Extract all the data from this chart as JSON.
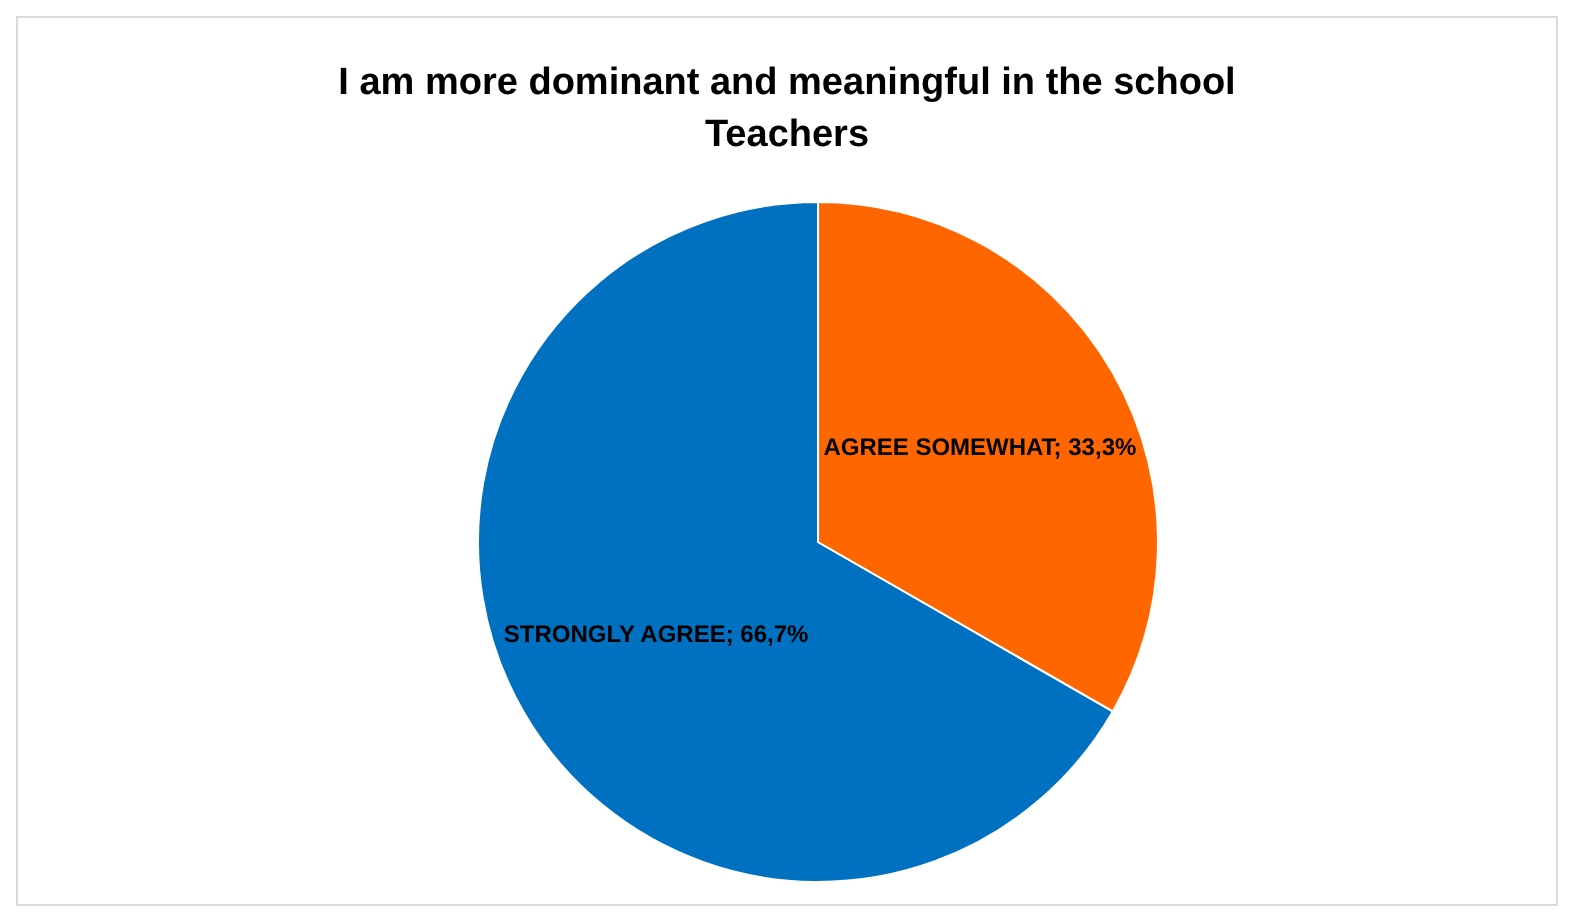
{
  "chart_data": {
    "type": "pie",
    "title": "I am more dominant and meaningful in the school",
    "subtitle": "Teachers",
    "categories": [
      "STRONGLY AGREE",
      "AGREE SOMEWHAT"
    ],
    "values": [
      66.7,
      33.3
    ],
    "colors": [
      "#0070c0",
      "#ff6600"
    ],
    "value_labels": [
      "66,7%",
      "33,3%"
    ]
  }
}
